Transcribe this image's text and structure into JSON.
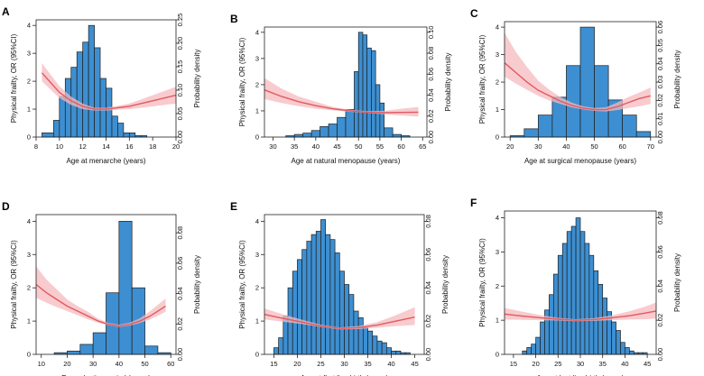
{
  "colors": {
    "bar": "#3d8fd1",
    "band": "#f6b9bd",
    "curve": "#e05a60"
  },
  "chart_data": [
    {
      "id": "A",
      "label": "A",
      "type": "bar",
      "xlabel": "Age at menarche (years)",
      "ylabel_left": "Physical frailty, OR (95%CI)",
      "ylabel_right": "Probability density",
      "xlim": [
        8,
        20
      ],
      "xticks": [
        8,
        10,
        12,
        14,
        16,
        18,
        20
      ],
      "ylim_left": [
        0,
        4.2
      ],
      "yticks_left": [
        0,
        1,
        2,
        3,
        4
      ],
      "ylim_right": [
        0,
        0.25
      ],
      "yticks_right": [
        "0.00",
        "0.05",
        "0.10",
        "0.15",
        "0.20",
        "0.25"
      ],
      "bin_edges": [
        8.5,
        9.5,
        10,
        10.5,
        11,
        11.5,
        12,
        12.5,
        13,
        13.5,
        14,
        14.5,
        15,
        15.5,
        16,
        16.5,
        17,
        17.5
      ],
      "counts_left": [
        0.15,
        0.6,
        1.45,
        2.1,
        2.5,
        3.05,
        3.4,
        4.0,
        3.2,
        2.1,
        1.75,
        0.75,
        0.5,
        0.15,
        0.15,
        0.05,
        0.05
      ],
      "curve": {
        "x": [
          8.5,
          10,
          11,
          12,
          13,
          14,
          15,
          16,
          17,
          18,
          19,
          20
        ],
        "or": [
          2.3,
          1.6,
          1.3,
          1.1,
          1.0,
          1.0,
          1.05,
          1.1,
          1.2,
          1.3,
          1.4,
          1.5
        ],
        "lower": [
          2.0,
          1.4,
          1.15,
          1.0,
          0.95,
          0.95,
          0.98,
          1.0,
          1.05,
          1.1,
          1.15,
          1.2
        ],
        "upper": [
          2.65,
          1.82,
          1.45,
          1.2,
          1.05,
          1.05,
          1.12,
          1.2,
          1.35,
          1.5,
          1.65,
          1.8
        ]
      }
    },
    {
      "id": "B",
      "label": "B",
      "type": "bar",
      "xlabel": "Age at natural menopause (years)",
      "ylabel_left": "Physical frailty, OR (95%CI)",
      "ylabel_right": "Probability density",
      "xlim": [
        28,
        66
      ],
      "xticks": [
        30,
        35,
        40,
        45,
        50,
        55,
        60,
        65
      ],
      "ylim_left": [
        0,
        4.2
      ],
      "yticks_left": [
        0,
        1,
        2,
        3,
        4
      ],
      "ylim_right": [
        0,
        0.105
      ],
      "yticks_right": [
        "0.00",
        "0.02",
        "0.04",
        "0.06",
        "0.08",
        "0.10"
      ],
      "bin_edges": [
        33,
        35,
        37,
        39,
        41,
        43,
        45,
        47,
        49,
        50,
        51,
        52,
        53,
        54,
        55,
        56,
        58,
        60,
        62
      ],
      "counts_left": [
        0.05,
        0.1,
        0.15,
        0.25,
        0.4,
        0.5,
        0.75,
        1.05,
        2.5,
        4.0,
        3.9,
        3.4,
        3.3,
        2.0,
        1.3,
        0.35,
        0.1,
        0.05
      ],
      "curve": {
        "x": [
          28,
          32,
          36,
          40,
          44,
          48,
          52,
          56,
          60,
          64
        ],
        "or": [
          1.8,
          1.55,
          1.35,
          1.2,
          1.08,
          1.0,
          0.95,
          0.93,
          0.94,
          0.95
        ],
        "lower": [
          1.45,
          1.3,
          1.18,
          1.08,
          1.02,
          0.96,
          0.92,
          0.87,
          0.82,
          0.78
        ],
        "upper": [
          2.25,
          1.85,
          1.55,
          1.35,
          1.15,
          1.04,
          0.99,
          1.0,
          1.08,
          1.15
        ]
      }
    },
    {
      "id": "C",
      "label": "C",
      "type": "bar",
      "xlabel": "Age at surgical menopause (years)",
      "ylabel_left": "Physical frailty, OR (95%CI)",
      "ylabel_right": "Probability density",
      "xlim": [
        18,
        72
      ],
      "xticks": [
        20,
        30,
        40,
        50,
        60,
        70
      ],
      "ylim_left": [
        0,
        4.2
      ],
      "yticks_left": [
        0,
        1,
        2,
        3,
        4
      ],
      "ylim_right": [
        0,
        0.063
      ],
      "yticks_right": [
        "0.00",
        "0.01",
        "0.02",
        "0.03",
        "0.04",
        "0.05",
        "0.06"
      ],
      "bin_edges": [
        20,
        25,
        30,
        35,
        40,
        45,
        50,
        55,
        60,
        65,
        70
      ],
      "counts_left": [
        0.05,
        0.3,
        0.8,
        1.45,
        2.6,
        4.0,
        2.6,
        1.35,
        0.8,
        0.2
      ],
      "curve": {
        "x": [
          18,
          22,
          26,
          30,
          34,
          38,
          42,
          46,
          50,
          54,
          58,
          62,
          66,
          70
        ],
        "or": [
          2.7,
          2.35,
          2.0,
          1.7,
          1.5,
          1.3,
          1.15,
          1.05,
          1.0,
          1.0,
          1.1,
          1.25,
          1.4,
          1.5
        ],
        "lower": [
          2.2,
          1.95,
          1.72,
          1.5,
          1.33,
          1.2,
          1.08,
          1.0,
          0.95,
          0.93,
          0.98,
          1.05,
          1.12,
          1.2
        ],
        "upper": [
          3.8,
          3.1,
          2.55,
          2.05,
          1.72,
          1.45,
          1.25,
          1.12,
          1.06,
          1.08,
          1.25,
          1.45,
          1.62,
          1.8
        ]
      }
    },
    {
      "id": "D",
      "label": "D",
      "type": "bar",
      "xlabel": "Reproductive period  (years)",
      "ylabel_left": "Physical frailty, OR (95%CI)",
      "ylabel_right": "Probability density",
      "xlim": [
        8,
        62
      ],
      "xticks": [
        10,
        20,
        30,
        40,
        50,
        60
      ],
      "ylim_left": [
        0,
        4.2
      ],
      "yticks_left": [
        0,
        1,
        2,
        3,
        4
      ],
      "ylim_right": [
        0,
        0.092
      ],
      "yticks_right": [
        "0.00",
        "0.02",
        "0.04",
        "0.06",
        "0.08"
      ],
      "bin_edges": [
        15,
        20,
        25,
        30,
        35,
        40,
        45,
        50,
        55,
        60
      ],
      "counts_left": [
        0.05,
        0.1,
        0.3,
        0.65,
        1.85,
        4.0,
        2.0,
        0.25,
        0.05
      ],
      "curve": {
        "x": [
          8,
          12,
          16,
          20,
          24,
          28,
          32,
          36,
          40,
          44,
          48,
          52,
          56,
          58
        ],
        "or": [
          2.1,
          1.85,
          1.65,
          1.45,
          1.3,
          1.15,
          1.0,
          0.9,
          0.85,
          0.9,
          1.0,
          1.15,
          1.35,
          1.45
        ],
        "lower": [
          1.7,
          1.55,
          1.42,
          1.3,
          1.18,
          1.05,
          0.95,
          0.87,
          0.82,
          0.86,
          0.94,
          1.05,
          1.2,
          1.28
        ],
        "upper": [
          2.65,
          2.25,
          1.95,
          1.65,
          1.45,
          1.28,
          1.07,
          0.94,
          0.89,
          0.95,
          1.08,
          1.3,
          1.55,
          1.68
        ]
      }
    },
    {
      "id": "E",
      "label": "E",
      "type": "bar",
      "xlabel": "Age at first live birth (years)",
      "ylabel_left": "Physical frailty, OR (95%CI)",
      "ylabel_right": "Probability density",
      "xlim": [
        13,
        47
      ],
      "xticks": [
        15,
        20,
        25,
        30,
        35,
        40,
        45
      ],
      "ylim_left": [
        0,
        4.2
      ],
      "yticks_left": [
        0,
        1,
        2,
        3,
        4
      ],
      "ylim_right": [
        0,
        0.084
      ],
      "yticks_right": [
        "0.00",
        "0.02",
        "0.04",
        "0.06",
        "0.08"
      ],
      "bin_edges": [
        15,
        16,
        17,
        18,
        19,
        20,
        21,
        22,
        23,
        24,
        25,
        26,
        27,
        28,
        29,
        30,
        31,
        32,
        33,
        34,
        35,
        36,
        37,
        38,
        39,
        40,
        41,
        42,
        43,
        44
      ],
      "counts_left": [
        0.2,
        0.5,
        1.15,
        2.0,
        2.5,
        2.85,
        3.15,
        3.4,
        3.6,
        3.7,
        4.05,
        3.6,
        3.45,
        3.05,
        2.5,
        2.1,
        1.8,
        1.3,
        1.1,
        0.8,
        0.7,
        0.55,
        0.4,
        0.35,
        0.2,
        0.1,
        0.1,
        0.05,
        0.05
      ],
      "curve": {
        "x": [
          13,
          17,
          21,
          25,
          29,
          33,
          37,
          41,
          45
        ],
        "or": [
          1.2,
          1.08,
          0.97,
          0.85,
          0.78,
          0.8,
          0.88,
          1.0,
          1.12
        ],
        "lower": [
          1.05,
          0.98,
          0.91,
          0.82,
          0.75,
          0.76,
          0.8,
          0.85,
          0.88
        ],
        "upper": [
          1.38,
          1.2,
          1.04,
          0.89,
          0.81,
          0.85,
          0.97,
          1.18,
          1.42
        ]
      }
    },
    {
      "id": "F",
      "label": "F",
      "type": "bar",
      "xlabel": "Age at last live birth (years)",
      "ylabel_left": "Physical frailty, OR (95%CI)",
      "ylabel_right": "Probability density",
      "xlim": [
        13,
        47
      ],
      "xticks": [
        15,
        20,
        25,
        30,
        35,
        40,
        45
      ],
      "ylim_left": [
        0,
        4.2
      ],
      "yticks_left": [
        0,
        1,
        2,
        3,
        4
      ],
      "ylim_right": [
        0,
        0.084
      ],
      "yticks_right": [
        "0.00",
        "0.02",
        "0.04",
        "0.06",
        "0.08"
      ],
      "bin_edges": [
        17,
        18,
        19,
        20,
        21,
        22,
        23,
        24,
        25,
        26,
        27,
        28,
        29,
        30,
        31,
        32,
        33,
        34,
        35,
        36,
        37,
        38,
        39,
        40,
        41,
        42,
        43,
        44,
        45
      ],
      "counts_left": [
        0.1,
        0.2,
        0.3,
        0.5,
        0.95,
        1.3,
        1.75,
        2.35,
        2.9,
        3.25,
        3.6,
        3.75,
        4.0,
        3.6,
        3.25,
        2.9,
        2.45,
        2.05,
        1.65,
        1.25,
        0.95,
        0.7,
        0.35,
        0.2,
        0.1,
        0.05,
        0.05,
        0.05
      ],
      "curve": {
        "x": [
          13,
          17,
          21,
          25,
          29,
          33,
          37,
          41,
          45,
          47
        ],
        "or": [
          1.18,
          1.12,
          1.07,
          1.03,
          1.0,
          1.02,
          1.07,
          1.13,
          1.22,
          1.27
        ],
        "lower": [
          1.02,
          1.01,
          1.0,
          0.99,
          0.97,
          0.98,
          1.0,
          1.02,
          1.03,
          1.05
        ],
        "upper": [
          1.36,
          1.25,
          1.15,
          1.07,
          1.03,
          1.06,
          1.14,
          1.26,
          1.42,
          1.52
        ]
      }
    }
  ]
}
